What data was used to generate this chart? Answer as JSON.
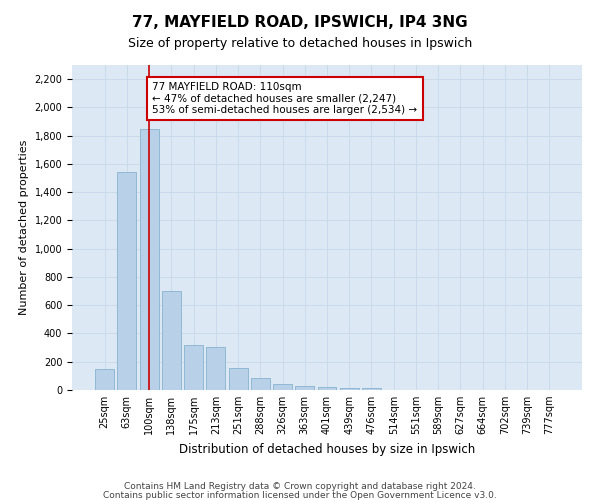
{
  "title1": "77, MAYFIELD ROAD, IPSWICH, IP4 3NG",
  "title2": "Size of property relative to detached houses in Ipswich",
  "xlabel": "Distribution of detached houses by size in Ipswich",
  "ylabel": "Number of detached properties",
  "categories": [
    "25sqm",
    "63sqm",
    "100sqm",
    "138sqm",
    "175sqm",
    "213sqm",
    "251sqm",
    "288sqm",
    "326sqm",
    "363sqm",
    "401sqm",
    "439sqm",
    "476sqm",
    "514sqm",
    "551sqm",
    "589sqm",
    "627sqm",
    "664sqm",
    "702sqm",
    "739sqm",
    "777sqm"
  ],
  "values": [
    150,
    1540,
    1850,
    700,
    315,
    305,
    155,
    85,
    40,
    30,
    20,
    15,
    12,
    0,
    0,
    0,
    0,
    0,
    0,
    0,
    0
  ],
  "bar_color": "#b8d0e8",
  "bar_edge_color": "#7aaaca",
  "highlight_index": 2,
  "annotation_text": "77 MAYFIELD ROAD: 110sqm\n← 47% of detached houses are smaller (2,247)\n53% of semi-detached houses are larger (2,534) →",
  "annotation_box_color": "#ffffff",
  "annotation_box_edge_color": "#cc0000",
  "ylim": [
    0,
    2300
  ],
  "yticks": [
    0,
    200,
    400,
    600,
    800,
    1000,
    1200,
    1400,
    1600,
    1800,
    2000,
    2200
  ],
  "footer1": "Contains HM Land Registry data © Crown copyright and database right 2024.",
  "footer2": "Contains public sector information licensed under the Open Government Licence v3.0.",
  "background_color": "#ffffff",
  "plot_bg_color": "#dce9f5",
  "grid_color": "#c8d8e8",
  "title1_fontsize": 11,
  "title2_fontsize": 9,
  "xlabel_fontsize": 8.5,
  "ylabel_fontsize": 8,
  "tick_fontsize": 7,
  "annotation_fontsize": 7.5,
  "footer_fontsize": 6.5
}
